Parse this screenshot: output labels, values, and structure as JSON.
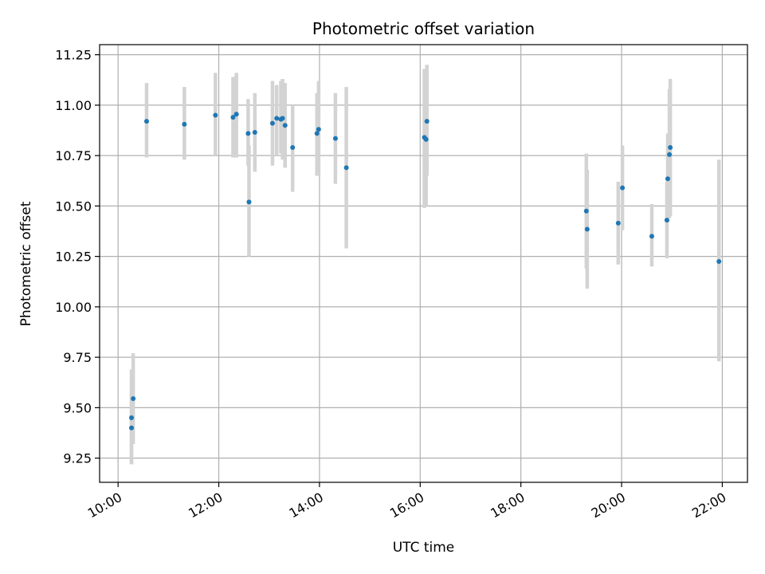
{
  "chart_data": {
    "type": "scatter",
    "title": "Photometric offset variation",
    "xlabel": "UTC time",
    "ylabel": "Photometric offset",
    "x_axis": "time (hours, UTC)",
    "xlim": [
      "09:38",
      "22:30"
    ],
    "ylim": [
      9.13,
      11.3
    ],
    "x_ticks": [
      "10:00",
      "12:00",
      "14:00",
      "16:00",
      "18:00",
      "20:00",
      "22:00"
    ],
    "y_ticks": [
      "9.25",
      "9.50",
      "9.75",
      "10.00",
      "10.25",
      "10.50",
      "10.75",
      "11.00",
      "11.25"
    ],
    "grid": true,
    "point_color": "#1f77b4",
    "errorbar_color": "#d3d3d3",
    "points": [
      {
        "x": "10:16",
        "y": 9.45,
        "ylow": 9.22,
        "yhigh": 9.69
      },
      {
        "x": "10:16",
        "y": 9.4,
        "ylow": 9.22,
        "yhigh": 9.58
      },
      {
        "x": "10:18",
        "y": 9.545,
        "ylow": 9.32,
        "yhigh": 9.77
      },
      {
        "x": "10:34",
        "y": 10.92,
        "ylow": 10.74,
        "yhigh": 11.11
      },
      {
        "x": "11:19",
        "y": 10.905,
        "ylow": 10.73,
        "yhigh": 11.09
      },
      {
        "x": "11:56",
        "y": 10.95,
        "ylow": 10.75,
        "yhigh": 11.16
      },
      {
        "x": "12:17",
        "y": 10.94,
        "ylow": 10.74,
        "yhigh": 11.14
      },
      {
        "x": "12:21",
        "y": 10.955,
        "ylow": 10.74,
        "yhigh": 11.16
      },
      {
        "x": "12:35",
        "y": 10.86,
        "ylow": 10.7,
        "yhigh": 11.03
      },
      {
        "x": "12:36",
        "y": 10.52,
        "ylow": 10.25,
        "yhigh": 10.8
      },
      {
        "x": "12:43",
        "y": 10.865,
        "ylow": 10.67,
        "yhigh": 11.06
      },
      {
        "x": "13:04",
        "y": 10.91,
        "ylow": 10.7,
        "yhigh": 11.12
      },
      {
        "x": "13:09",
        "y": 10.935,
        "ylow": 10.75,
        "yhigh": 11.1
      },
      {
        "x": "13:14",
        "y": 10.93,
        "ylow": 10.76,
        "yhigh": 11.12
      },
      {
        "x": "13:16",
        "y": 10.935,
        "ylow": 10.73,
        "yhigh": 11.13
      },
      {
        "x": "13:19",
        "y": 10.9,
        "ylow": 10.69,
        "yhigh": 11.11
      },
      {
        "x": "13:28",
        "y": 10.79,
        "ylow": 10.57,
        "yhigh": 11.0
      },
      {
        "x": "13:57",
        "y": 10.86,
        "ylow": 10.65,
        "yhigh": 11.06
      },
      {
        "x": "13:59",
        "y": 10.88,
        "ylow": 10.65,
        "yhigh": 11.12
      },
      {
        "x": "14:19",
        "y": 10.835,
        "ylow": 10.61,
        "yhigh": 11.06
      },
      {
        "x": "14:32",
        "y": 10.69,
        "ylow": 10.29,
        "yhigh": 11.09
      },
      {
        "x": "16:05",
        "y": 10.84,
        "ylow": 10.49,
        "yhigh": 11.18
      },
      {
        "x": "16:07",
        "y": 10.83,
        "ylow": 10.5,
        "yhigh": 11.16
      },
      {
        "x": "16:08",
        "y": 10.92,
        "ylow": 10.65,
        "yhigh": 11.2
      },
      {
        "x": "19:18",
        "y": 10.475,
        "ylow": 10.19,
        "yhigh": 10.76
      },
      {
        "x": "19:19",
        "y": 10.385,
        "ylow": 10.09,
        "yhigh": 10.68
      },
      {
        "x": "19:56",
        "y": 10.415,
        "ylow": 10.21,
        "yhigh": 10.62
      },
      {
        "x": "20:01",
        "y": 10.59,
        "ylow": 10.38,
        "yhigh": 10.8
      },
      {
        "x": "20:36",
        "y": 10.35,
        "ylow": 10.2,
        "yhigh": 10.51
      },
      {
        "x": "20:54",
        "y": 10.43,
        "ylow": 10.24,
        "yhigh": 10.62
      },
      {
        "x": "20:55",
        "y": 10.635,
        "ylow": 10.42,
        "yhigh": 10.86
      },
      {
        "x": "20:57",
        "y": 10.755,
        "ylow": 10.44,
        "yhigh": 11.08
      },
      {
        "x": "20:58",
        "y": 10.79,
        "ylow": 10.45,
        "yhigh": 11.13
      },
      {
        "x": "21:56",
        "y": 10.225,
        "ylow": 9.73,
        "yhigh": 10.73
      }
    ]
  }
}
